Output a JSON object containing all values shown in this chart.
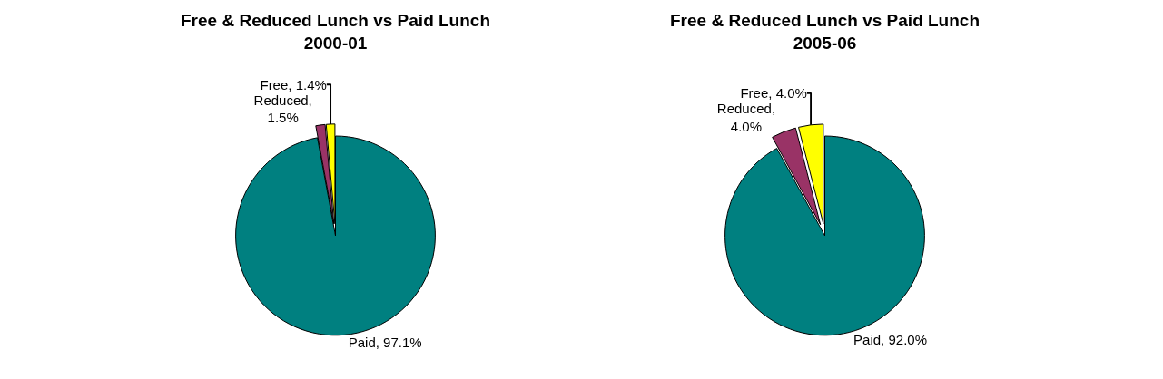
{
  "chart_data": [
    {
      "type": "pie",
      "title": "Free & Reduced Lunch vs Paid Lunch\n2000-01",
      "categories": [
        "Paid",
        "Reduced",
        "Free"
      ],
      "values": [
        97.1,
        1.5,
        1.4
      ],
      "colors": [
        "#008080",
        "#993366",
        "#ffff00"
      ],
      "value_labels": [
        ", 97.1%",
        ",\n1.5%",
        ", 1.4%"
      ],
      "legend": false
    },
    {
      "type": "pie",
      "title": "Free & Reduced Lunch vs Paid Lunch\n2005-06",
      "categories": [
        "Paid",
        "Reduced",
        "Free"
      ],
      "values": [
        92.0,
        4.0,
        4.0
      ],
      "colors": [
        "#008080",
        "#993366",
        "#ffff00"
      ],
      "value_labels": [
        ", 92.0%",
        ",\n4.0%",
        ", 4.0%"
      ],
      "legend": false
    }
  ]
}
